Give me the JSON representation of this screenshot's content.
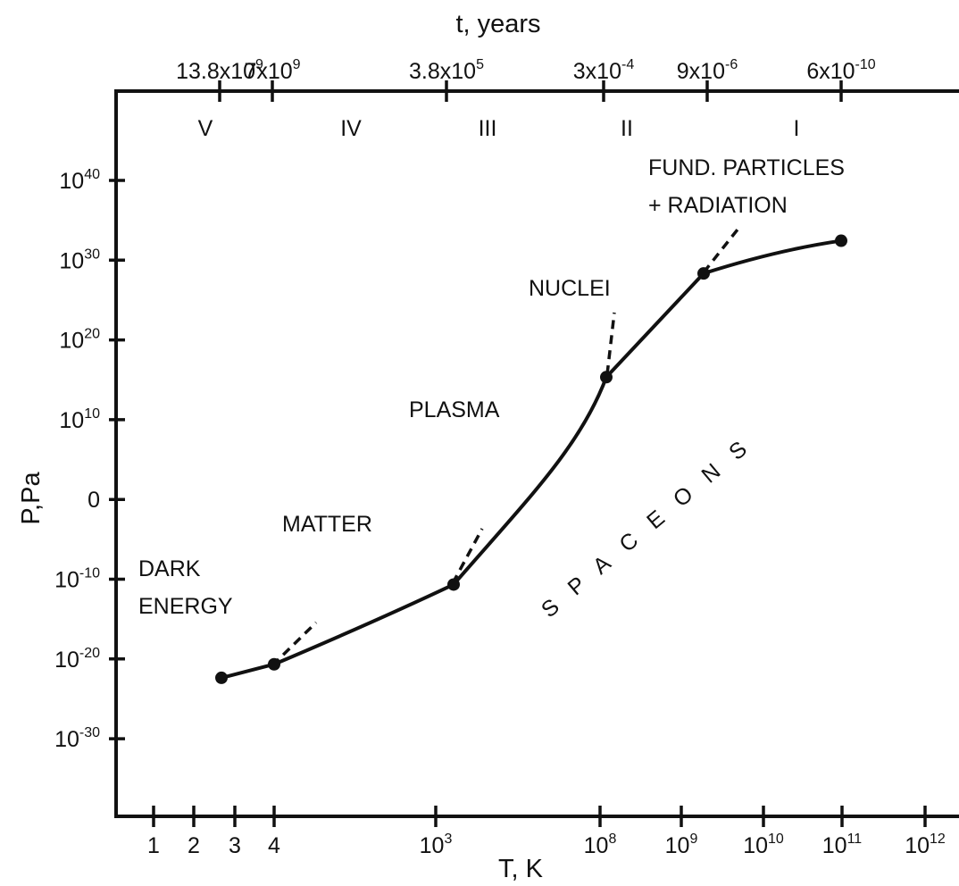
{
  "chart_data": {
    "type": "line",
    "top_axis_title": "t, years",
    "x_axis_title": "T, K",
    "y_axis_title": "P,Pa",
    "top_ticks": [
      {
        "base": "13.8x10",
        "exp": "9"
      },
      {
        "base": "7x10",
        "exp": "9"
      },
      {
        "base": "3.8x10",
        "exp": "5"
      },
      {
        "base": "3x10",
        "exp": "-4"
      },
      {
        "base": "9x10",
        "exp": "-6"
      },
      {
        "base": "6x10",
        "exp": "-10"
      }
    ],
    "eras": [
      "V",
      "IV",
      "III",
      "II",
      "I"
    ],
    "x_ticks": [
      {
        "base": "1",
        "exp": ""
      },
      {
        "base": "2",
        "exp": ""
      },
      {
        "base": "3",
        "exp": ""
      },
      {
        "base": "4",
        "exp": ""
      },
      {
        "base": "10",
        "exp": "3"
      },
      {
        "base": "10",
        "exp": "8"
      },
      {
        "base": "10",
        "exp": "9"
      },
      {
        "base": "10",
        "exp": "10"
      },
      {
        "base": "10",
        "exp": "11"
      },
      {
        "base": "10",
        "exp": "12"
      }
    ],
    "y_ticks": [
      {
        "base": "10",
        "exp": "40"
      },
      {
        "base": "10",
        "exp": "30"
      },
      {
        "base": "10",
        "exp": "20"
      },
      {
        "base": "10",
        "exp": "10"
      },
      {
        "base": "0",
        "exp": ""
      },
      {
        "base": "10",
        "exp": "-10"
      },
      {
        "base": "10",
        "exp": "-20"
      },
      {
        "base": "10",
        "exp": "-30"
      }
    ],
    "series": [
      {
        "points": [
          {
            "T": "2.7",
            "logP": -22.5
          },
          {
            "T": "4",
            "logP": -20.8
          },
          {
            "T": "1.5x10^3",
            "logP": -10.8
          },
          {
            "T": "1.2x10^8",
            "logP": 15.2
          },
          {
            "T": "2x10^9",
            "logP": 28.2
          },
          {
            "T": "10^11",
            "logP": 32.3
          }
        ]
      }
    ],
    "regions": {
      "dark_energy": [
        "DARK",
        "ENERGY"
      ],
      "matter": "MATTER",
      "plasma": "PLASMA",
      "nuclei": "NUCLEI",
      "fund_particles": [
        "FUND. PARTICLES",
        "+ RADIATION"
      ],
      "spaceons": "SPACEONS"
    }
  }
}
